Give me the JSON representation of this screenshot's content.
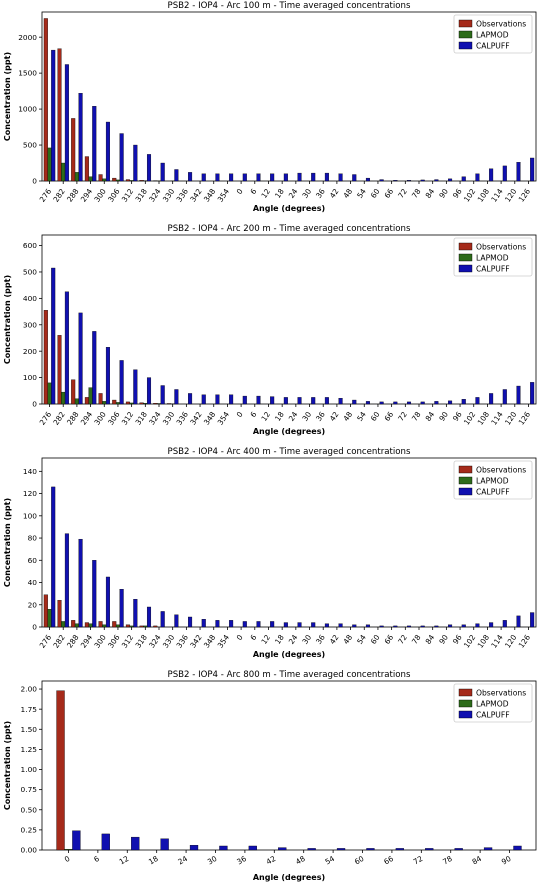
{
  "figure": {
    "colors": {
      "Observations": "#a52a1a",
      "LAPMOD": "#2d6b1a",
      "CALPUFF": "#1010b0"
    },
    "legend": [
      "Observations",
      "LAPMOD",
      "CALPUFF"
    ]
  },
  "chart_data": [
    {
      "type": "bar",
      "title": "PSB2 - IOP4 - Arc 100 m - Time averaged concentrations",
      "xlabel": "Angle (degrees)",
      "ylabel": "Concentration (ppt)",
      "ylim": [
        0,
        2350
      ],
      "yticks": [
        "0",
        "500",
        "1000",
        "1500",
        "2000"
      ],
      "ytick_values": [
        0,
        500,
        1000,
        1500,
        2000
      ],
      "grid": false,
      "legend_position": "top-right",
      "categories": [
        "276",
        "282",
        "288",
        "294",
        "300",
        "306",
        "312",
        "318",
        "324",
        "330",
        "336",
        "342",
        "348",
        "354",
        "0",
        "6",
        "12",
        "18",
        "24",
        "30",
        "36",
        "42",
        "48",
        "54",
        "60",
        "66",
        "72",
        "78",
        "84",
        "90",
        "96",
        "102",
        "108",
        "114",
        "120",
        "126"
      ],
      "series": [
        {
          "name": "Observations",
          "values": [
            2260,
            1840,
            870,
            340,
            90,
            40,
            20,
            10,
            5,
            0,
            0,
            0,
            0,
            0,
            0,
            0,
            0,
            0,
            0,
            0,
            0,
            0,
            0,
            0,
            0,
            0,
            0,
            0,
            0,
            0,
            0,
            0,
            0,
            0,
            0,
            0
          ]
        },
        {
          "name": "LAPMOD",
          "values": [
            460,
            250,
            120,
            60,
            30,
            15,
            8,
            5,
            2,
            1,
            0,
            0,
            0,
            0,
            0,
            0,
            0,
            0,
            0,
            0,
            0,
            0,
            0,
            0,
            0,
            0,
            0,
            0,
            0,
            0,
            0,
            0,
            0,
            0,
            0,
            0
          ]
        },
        {
          "name": "CALPUFF",
          "values": [
            1820,
            1620,
            1220,
            1040,
            820,
            660,
            500,
            370,
            250,
            160,
            120,
            100,
            100,
            100,
            100,
            100,
            100,
            100,
            110,
            110,
            110,
            100,
            90,
            40,
            20,
            10,
            10,
            15,
            20,
            30,
            60,
            100,
            170,
            210,
            260,
            320
          ]
        }
      ]
    },
    {
      "type": "bar",
      "title": "PSB2 - IOP4 - Arc 200 m - Time averaged concentrations",
      "xlabel": "Angle (degrees)",
      "ylabel": "Concentration (ppt)",
      "ylim": [
        0,
        640
      ],
      "yticks": [
        "0",
        "100",
        "200",
        "300",
        "400",
        "500",
        "600"
      ],
      "ytick_values": [
        0,
        100,
        200,
        300,
        400,
        500,
        600
      ],
      "grid": false,
      "legend_position": "top-right",
      "categories": [
        "276",
        "282",
        "288",
        "294",
        "300",
        "306",
        "312",
        "318",
        "324",
        "330",
        "336",
        "342",
        "348",
        "354",
        "0",
        "6",
        "12",
        "18",
        "24",
        "30",
        "36",
        "42",
        "48",
        "54",
        "60",
        "66",
        "72",
        "78",
        "84",
        "90",
        "96",
        "102",
        "108",
        "114",
        "120",
        "126"
      ],
      "series": [
        {
          "name": "Observations",
          "values": [
            355,
            260,
            92,
            25,
            40,
            15,
            8,
            5,
            3,
            2,
            0,
            0,
            0,
            0,
            0,
            0,
            0,
            0,
            0,
            0,
            0,
            0,
            0,
            0,
            0,
            0,
            0,
            0,
            0,
            0,
            0,
            0,
            0,
            0,
            0,
            0
          ]
        },
        {
          "name": "LAPMOD",
          "values": [
            80,
            45,
            20,
            62,
            10,
            6,
            4,
            3,
            2,
            1,
            0,
            0,
            0,
            0,
            0,
            0,
            0,
            0,
            0,
            0,
            0,
            0,
            0,
            0,
            0,
            0,
            0,
            0,
            0,
            0,
            0,
            0,
            0,
            0,
            0,
            0
          ]
        },
        {
          "name": "CALPUFF",
          "values": [
            515,
            425,
            345,
            275,
            215,
            165,
            130,
            100,
            70,
            55,
            40,
            35,
            35,
            35,
            30,
            30,
            28,
            25,
            25,
            25,
            25,
            22,
            15,
            10,
            8,
            8,
            8,
            8,
            10,
            12,
            18,
            25,
            40,
            55,
            68,
            82
          ]
        }
      ]
    },
    {
      "type": "bar",
      "title": "PSB2 - IOP4 - Arc 400 m - Time averaged concentrations",
      "xlabel": "Angle (degrees)",
      "ylabel": "Concentration (ppt)",
      "ylim": [
        0,
        152
      ],
      "yticks": [
        "0",
        "20",
        "40",
        "60",
        "80",
        "100",
        "120",
        "140"
      ],
      "ytick_values": [
        0,
        20,
        40,
        60,
        80,
        100,
        120,
        140
      ],
      "grid": false,
      "legend_position": "top-right",
      "categories": [
        "276",
        "282",
        "288",
        "294",
        "300",
        "306",
        "312",
        "318",
        "324",
        "330",
        "336",
        "342",
        "348",
        "354",
        "0",
        "6",
        "12",
        "18",
        "24",
        "30",
        "36",
        "42",
        "48",
        "54",
        "60",
        "66",
        "72",
        "78",
        "84",
        "90",
        "96",
        "102",
        "108",
        "114",
        "120",
        "126"
      ],
      "series": [
        {
          "name": "Observations",
          "values": [
            29,
            24,
            6,
            4,
            5,
            5,
            2,
            1,
            1,
            0,
            0,
            0,
            0,
            0,
            0,
            0,
            0,
            0,
            0,
            0,
            0,
            0,
            0,
            0,
            0,
            0,
            0,
            0,
            0,
            0,
            0,
            0,
            0,
            0,
            0,
            0
          ]
        },
        {
          "name": "LAPMOD",
          "values": [
            16,
            5,
            3,
            3,
            2,
            2,
            1,
            1,
            0,
            0,
            0,
            0,
            0,
            0,
            0,
            0,
            0,
            0,
            0,
            0,
            0,
            0,
            0,
            0,
            0,
            0,
            0,
            0,
            0,
            0,
            0,
            0,
            0,
            0,
            0,
            0
          ]
        },
        {
          "name": "CALPUFF",
          "values": [
            126,
            84,
            79,
            60,
            45,
            34,
            25,
            18,
            14,
            11,
            9,
            7,
            6,
            6,
            5,
            5,
            5,
            4,
            4,
            4,
            3,
            3,
            2,
            2,
            1,
            1,
            1,
            1,
            1,
            2,
            2,
            3,
            4,
            6,
            10,
            13
          ]
        }
      ]
    },
    {
      "type": "bar",
      "title": "PSB2 - IOP4 - Arc 800 m - Time averaged concentrations",
      "xlabel": "Angle (degrees)",
      "ylabel": "Concentration (ppt)",
      "ylim": [
        0,
        2.1
      ],
      "yticks": [
        "0.00",
        "0.25",
        "0.50",
        "0.75",
        "1.00",
        "1.25",
        "1.50",
        "1.75",
        "2.00"
      ],
      "ytick_values": [
        0,
        0.25,
        0.5,
        0.75,
        1.0,
        1.25,
        1.5,
        1.75,
        2.0
      ],
      "grid": false,
      "legend_position": "top-right",
      "categories": [
        "0",
        "6",
        "12",
        "18",
        "24",
        "30",
        "36",
        "42",
        "48",
        "54",
        "60",
        "66",
        "72",
        "78",
        "84",
        "90"
      ],
      "series": [
        {
          "name": "Observations",
          "values": [
            1.98,
            0,
            0,
            0,
            0,
            0,
            0,
            0,
            0,
            0,
            0,
            0,
            0,
            0,
            0,
            0
          ]
        },
        {
          "name": "LAPMOD",
          "values": [
            0.01,
            0,
            0,
            0,
            0,
            0,
            0,
            0,
            0,
            0,
            0,
            0,
            0,
            0,
            0,
            0
          ]
        },
        {
          "name": "CALPUFF",
          "values": [
            0.24,
            0.2,
            0.16,
            0.14,
            0.06,
            0.05,
            0.05,
            0.03,
            0.02,
            0.02,
            0.02,
            0.02,
            0.02,
            0.02,
            0.03,
            0.05
          ]
        }
      ]
    }
  ]
}
